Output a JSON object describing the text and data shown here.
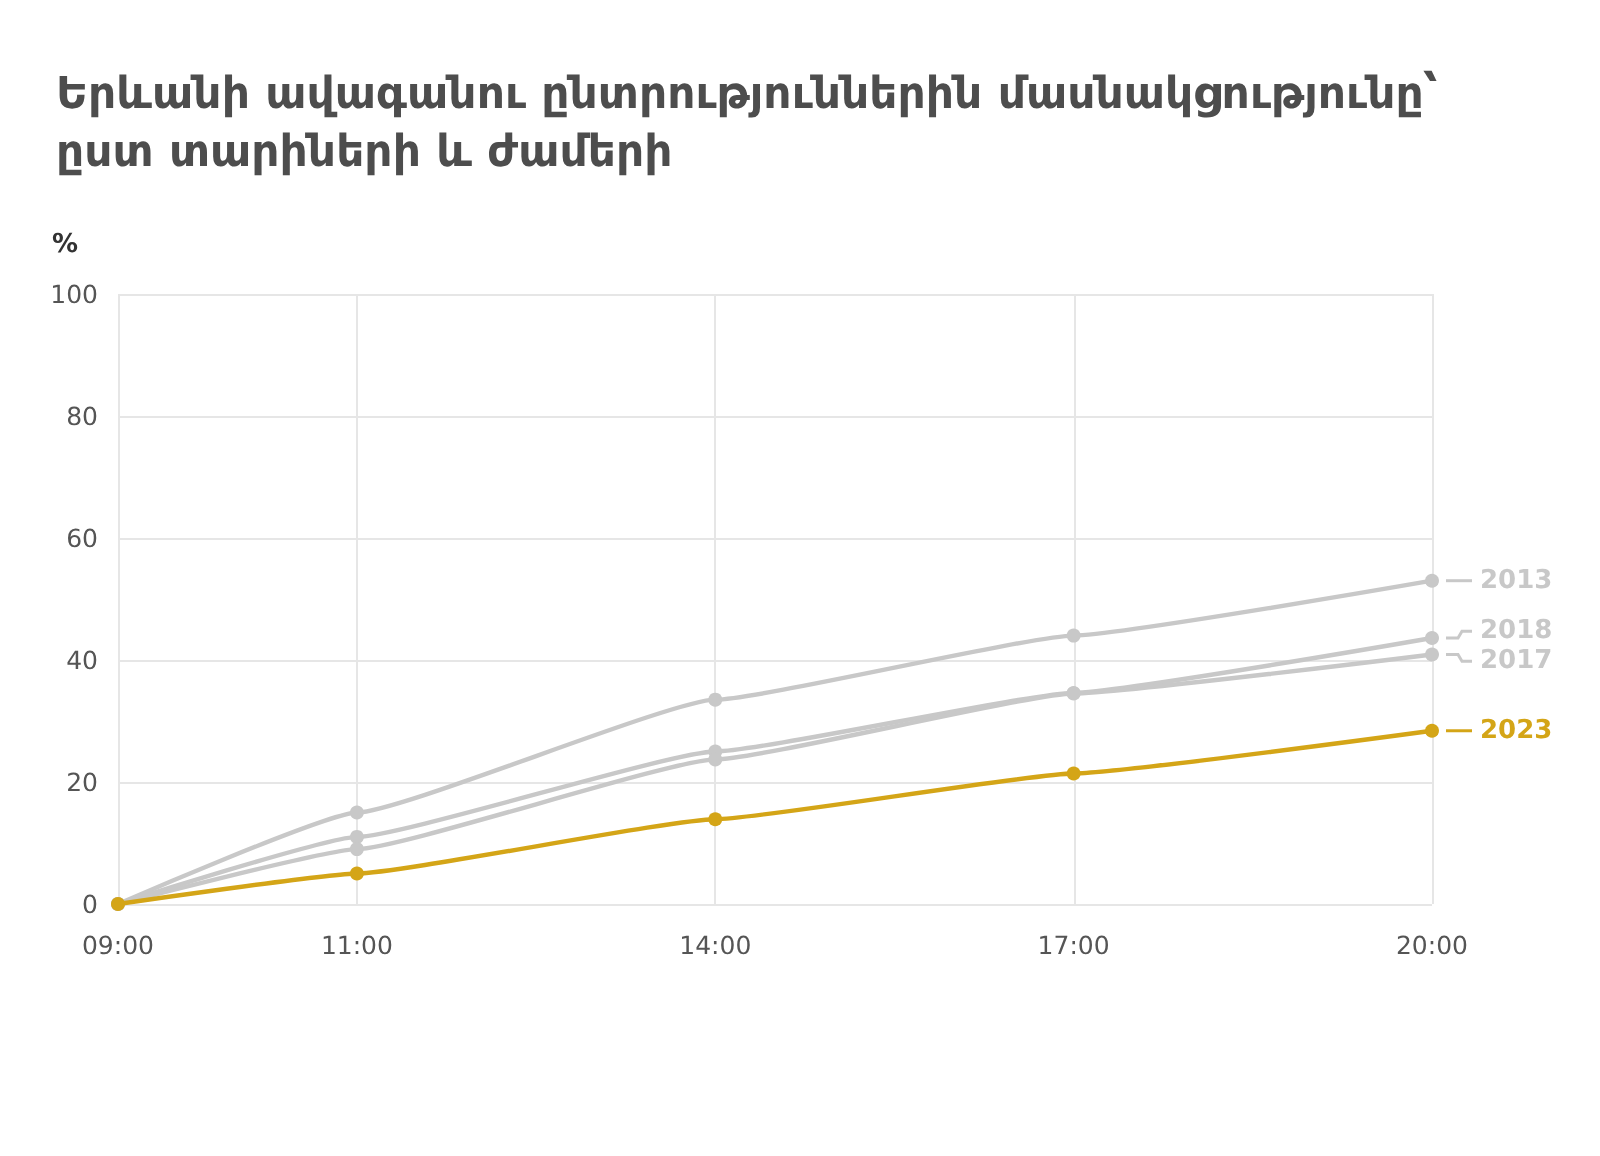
{
  "chart_data": {
    "type": "line",
    "title": "Երևանի ավագանու ընտրություններին մասնակցությունը՝ ըստ տարիների և ժամերի",
    "ylabel": "%",
    "x": [
      9,
      11,
      14,
      17,
      20
    ],
    "xlim": [
      9,
      20
    ],
    "xticks": [
      {
        "value": 9,
        "label": "09:00"
      },
      {
        "value": 11,
        "label": "11:00"
      },
      {
        "value": 14,
        "label": "14:00"
      },
      {
        "value": 17,
        "label": "17:00"
      },
      {
        "value": 20,
        "label": "20:00"
      }
    ],
    "ylim": [
      0,
      100
    ],
    "yticks": [
      0,
      20,
      40,
      60,
      80,
      100
    ],
    "grid": true,
    "legend": "right",
    "marker": "circle",
    "line_style": "solid",
    "series": [
      {
        "name": "2013",
        "color": "#c8c8c8",
        "values": [
          0,
          15,
          33.5,
          44,
          53
        ]
      },
      {
        "name": "2018",
        "color": "#c8c8c8",
        "values": [
          0,
          11,
          25,
          34.6,
          43.6
        ]
      },
      {
        "name": "2017",
        "color": "#c8c8c8",
        "values": [
          0,
          9,
          23.7,
          34.5,
          40.9
        ]
      },
      {
        "name": "2023",
        "color": "#d4a517",
        "values": [
          0,
          5,
          13.9,
          21.4,
          28.4
        ]
      }
    ]
  }
}
